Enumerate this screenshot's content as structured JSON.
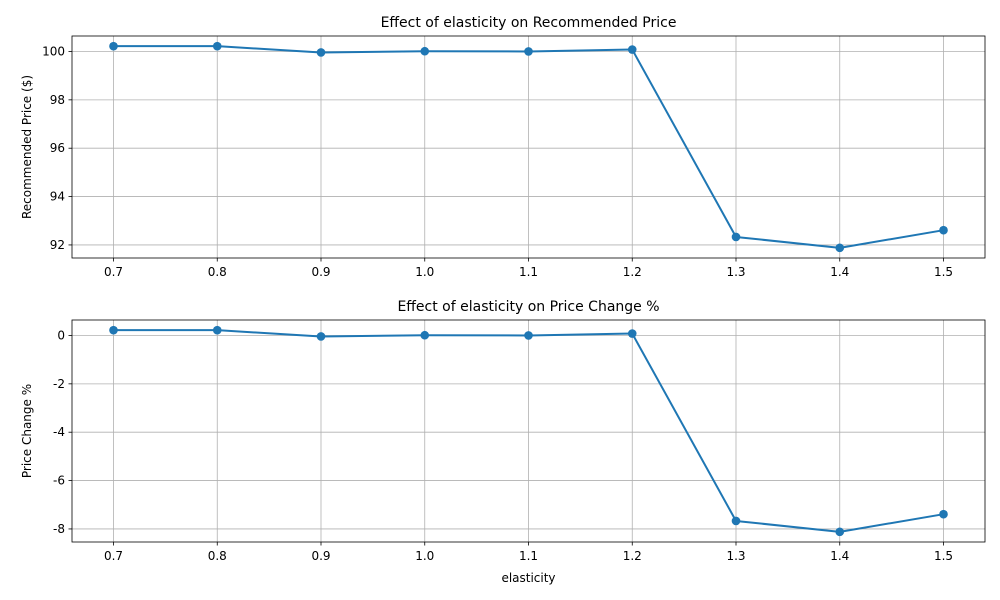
{
  "chart_data": [
    {
      "type": "line",
      "title": "Effect of elasticity on Recommended Price",
      "xlabel": "",
      "ylabel": "Recommended Price ($)",
      "x": [
        0.7,
        0.8,
        0.9,
        1.0,
        1.1,
        1.2,
        1.3,
        1.4,
        1.5
      ],
      "series": [
        {
          "values": [
            100.22,
            100.22,
            99.96,
            100.01,
            100.0,
            100.08,
            92.33,
            91.88,
            92.61
          ],
          "color": "#1f77b4"
        }
      ],
      "xlim": [
        0.66,
        1.54
      ],
      "ylim": [
        91.46,
        100.64
      ],
      "xticks": [
        "0.7",
        "0.8",
        "0.9",
        "1.0",
        "1.1",
        "1.2",
        "1.3",
        "1.4",
        "1.5"
      ],
      "yticks": [
        "92",
        "94",
        "96",
        "98",
        "100"
      ],
      "grid": true,
      "marker": "circle"
    },
    {
      "type": "line",
      "title": "Effect of elasticity on Price Change %",
      "xlabel": "elasticity",
      "ylabel": "Price Change %",
      "x": [
        0.7,
        0.8,
        0.9,
        1.0,
        1.1,
        1.2,
        1.3,
        1.4,
        1.5
      ],
      "series": [
        {
          "values": [
            0.22,
            0.22,
            -0.04,
            0.01,
            0.0,
            0.08,
            -7.67,
            -8.12,
            -7.39
          ],
          "color": "#1f77b4"
        }
      ],
      "xlim": [
        0.66,
        1.54
      ],
      "ylim": [
        -8.54,
        0.64
      ],
      "xticks": [
        "0.7",
        "0.8",
        "0.9",
        "1.0",
        "1.1",
        "1.2",
        "1.3",
        "1.4",
        "1.5"
      ],
      "yticks": [
        "-8",
        "-6",
        "-4",
        "-2",
        "0"
      ],
      "grid": true,
      "marker": "circle"
    }
  ]
}
